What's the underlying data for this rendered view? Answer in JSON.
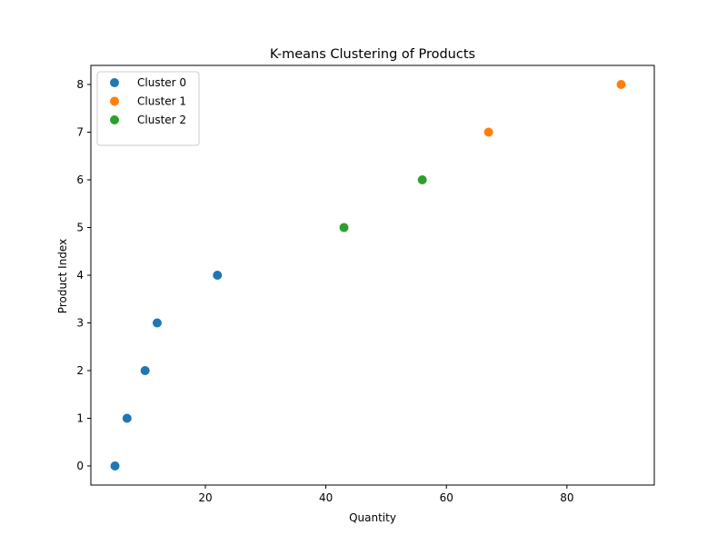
{
  "chart_data": {
    "type": "scatter",
    "title": "K-means Clustering of Products",
    "xlabel": "Quantity",
    "ylabel": "Product Index",
    "xlim": [
      1,
      94.5
    ],
    "ylim": [
      -0.4,
      8.4
    ],
    "xticks": [
      20,
      40,
      60,
      80
    ],
    "yticks": [
      0,
      1,
      2,
      3,
      4,
      5,
      6,
      7,
      8
    ],
    "grid": false,
    "legend_position": "top-left",
    "series": [
      {
        "name": "Cluster 0",
        "color": "#1f77b4",
        "points": [
          [
            5,
            0
          ],
          [
            7,
            1
          ],
          [
            10,
            2
          ],
          [
            12,
            3
          ],
          [
            22,
            4
          ]
        ]
      },
      {
        "name": "Cluster 1",
        "color": "#ff7f0e",
        "points": [
          [
            67,
            7
          ],
          [
            89,
            8
          ]
        ]
      },
      {
        "name": "Cluster 2",
        "color": "#2ca02c",
        "points": [
          [
            43,
            5
          ],
          [
            56,
            6
          ]
        ]
      }
    ]
  }
}
